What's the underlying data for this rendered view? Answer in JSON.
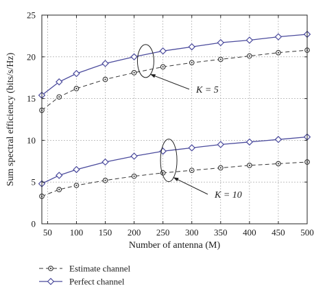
{
  "chart_data": {
    "type": "line",
    "xlabel": "Number of antenna (M)",
    "ylabel": "Sum spectral efficiency (bits/s/Hz)",
    "xlim": [
      40,
      500
    ],
    "ylim": [
      0,
      25
    ],
    "xticks": [
      50,
      100,
      150,
      200,
      250,
      300,
      350,
      400,
      450,
      500
    ],
    "yticks": [
      0,
      5,
      10,
      15,
      20,
      25
    ],
    "grid": true,
    "legend_position": "bottom-left, below plot",
    "x": [
      40,
      70,
      100,
      150,
      200,
      250,
      300,
      350,
      400,
      450,
      500
    ],
    "series": [
      {
        "name": "Perfect channel",
        "group": "K = 5",
        "style": "solid",
        "marker": "diamond",
        "color": "#4a4a9c",
        "values": [
          15.4,
          17.0,
          18.0,
          19.2,
          20.0,
          20.7,
          21.2,
          21.7,
          22.0,
          22.4,
          22.7
        ]
      },
      {
        "name": "Estimate channel",
        "group": "K = 5",
        "style": "dashed",
        "marker": "circle",
        "color": "#333333",
        "values": [
          13.6,
          15.2,
          16.2,
          17.3,
          18.1,
          18.8,
          19.3,
          19.7,
          20.1,
          20.5,
          20.8
        ]
      },
      {
        "name": "Perfect channel",
        "group": "K = 10",
        "style": "solid",
        "marker": "diamond",
        "color": "#4a4a9c",
        "values": [
          4.8,
          5.8,
          6.5,
          7.4,
          8.1,
          8.7,
          9.1,
          9.5,
          9.8,
          10.1,
          10.4
        ]
      },
      {
        "name": "Estimate channel",
        "group": "K = 10",
        "style": "dashed",
        "marker": "circle",
        "color": "#333333",
        "values": [
          3.3,
          4.1,
          4.6,
          5.2,
          5.7,
          6.1,
          6.4,
          6.7,
          7.0,
          7.2,
          7.4
        ]
      }
    ],
    "annotations": [
      {
        "label": "K = 5",
        "ellipse_center": [
          220,
          19.5
        ]
      },
      {
        "label": "K = 10",
        "ellipse_center": [
          260,
          7.6
        ]
      }
    ],
    "legend": [
      {
        "label": "Estimate channel",
        "style": "dashed",
        "marker": "circle"
      },
      {
        "label": "Perfect channel",
        "style": "solid",
        "marker": "diamond"
      }
    ]
  }
}
